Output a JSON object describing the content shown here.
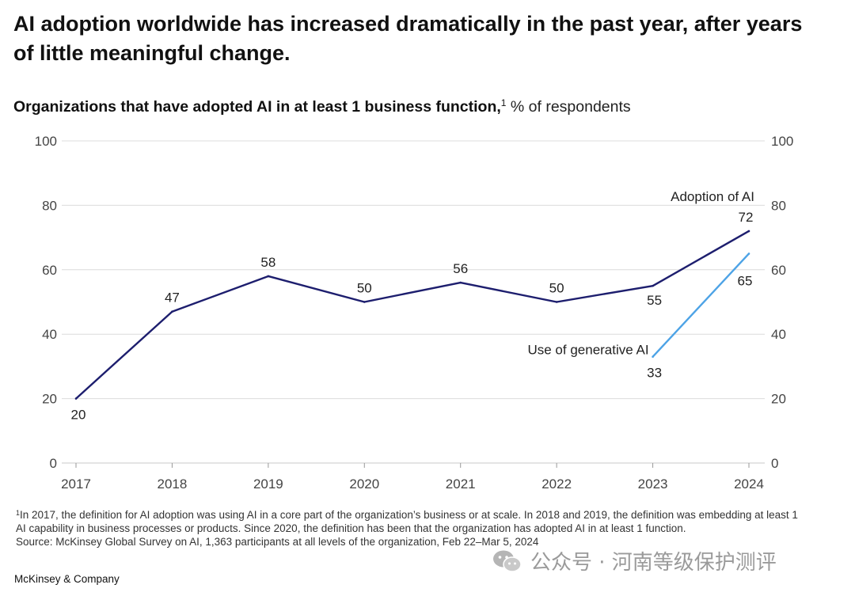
{
  "headline": "AI adoption worldwide has increased dramatically in the past year, after years of little meaningful change.",
  "subtitle": {
    "bold": "Organizations that have adopted AI in at least 1 business function,",
    "footnote_mark": "1",
    "unit": " % of respondents"
  },
  "chart_data": {
    "type": "line",
    "title": "Organizations that have adopted AI in at least 1 business function, % of respondents",
    "categories": [
      "2017",
      "2018",
      "2019",
      "2020",
      "2021",
      "2022",
      "2023",
      "2024"
    ],
    "ylim": [
      0,
      100
    ],
    "yticks": [
      "0",
      "20",
      "40",
      "60",
      "80",
      "100"
    ],
    "grid": true,
    "series": [
      {
        "name": "Adoption of AI",
        "color": "#1d1e6e",
        "x": [
          "2017",
          "2018",
          "2019",
          "2020",
          "2021",
          "2022",
          "2023",
          "2024"
        ],
        "values": [
          20,
          47,
          58,
          50,
          56,
          50,
          55,
          72
        ],
        "labels": [
          "20",
          "47",
          "58",
          "50",
          "56",
          "50",
          "55",
          "72"
        ]
      },
      {
        "name": "Use of generative AI",
        "color": "#4da3e6",
        "x": [
          "2023",
          "2024"
        ],
        "values": [
          33,
          65
        ],
        "labels": [
          "33",
          "65"
        ]
      }
    ]
  },
  "footnotes": {
    "mark": "1",
    "text": "In 2017, the definition for AI adoption was using AI in a core part of the organization’s business or at scale. In 2018 and 2019, the definition was embedding at least 1 AI capability in business processes or products. Since 2020, the definition has been that the organization has adopted AI in at least 1 function.",
    "source": "Source: McKinsey Global Survey on AI, 1,363 participants at all levels of the organization, Feb 22–Mar 5, 2024"
  },
  "brand": "McKinsey & Company",
  "watermark": {
    "icon": "wechat-icon",
    "text": "公众号 · 河南等级保护测评"
  }
}
